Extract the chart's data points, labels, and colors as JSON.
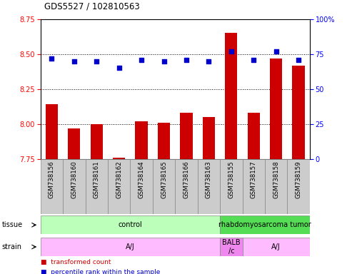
{
  "title": "GDS5527 / 102810563",
  "samples": [
    "GSM738156",
    "GSM738160",
    "GSM738161",
    "GSM738162",
    "GSM738164",
    "GSM738165",
    "GSM738166",
    "GSM738163",
    "GSM738155",
    "GSM738157",
    "GSM738158",
    "GSM738159"
  ],
  "transformed_count": [
    8.14,
    7.97,
    8.0,
    7.76,
    8.02,
    8.01,
    8.08,
    8.05,
    8.65,
    8.08,
    8.47,
    8.42
  ],
  "percentile_rank": [
    72,
    70,
    70,
    65,
    71,
    70,
    71,
    70,
    77,
    71,
    77,
    71
  ],
  "ylim_left": [
    7.75,
    8.75
  ],
  "ylim_right": [
    0,
    100
  ],
  "yticks_left": [
    7.75,
    8.0,
    8.25,
    8.5,
    8.75
  ],
  "yticks_right": [
    0,
    25,
    50,
    75,
    100
  ],
  "bar_color": "#cc0000",
  "dot_color": "#0000cc",
  "tissue_groups": [
    {
      "label": "control",
      "start": 0,
      "end": 8,
      "color": "#bbffbb"
    },
    {
      "label": "rhabdomyosarcoma tumor",
      "start": 8,
      "end": 12,
      "color": "#55dd55"
    }
  ],
  "strain_groups": [
    {
      "label": "A/J",
      "start": 0,
      "end": 8,
      "color": "#ffbbff"
    },
    {
      "label": "BALB\n/c",
      "start": 8,
      "end": 9,
      "color": "#ee88ee"
    },
    {
      "label": "A/J",
      "start": 9,
      "end": 12,
      "color": "#ffbbff"
    }
  ],
  "grid_style": "dotted",
  "background_color": "#ffffff",
  "label_bg_color": "#cccccc",
  "label_edge_color": "#888888"
}
